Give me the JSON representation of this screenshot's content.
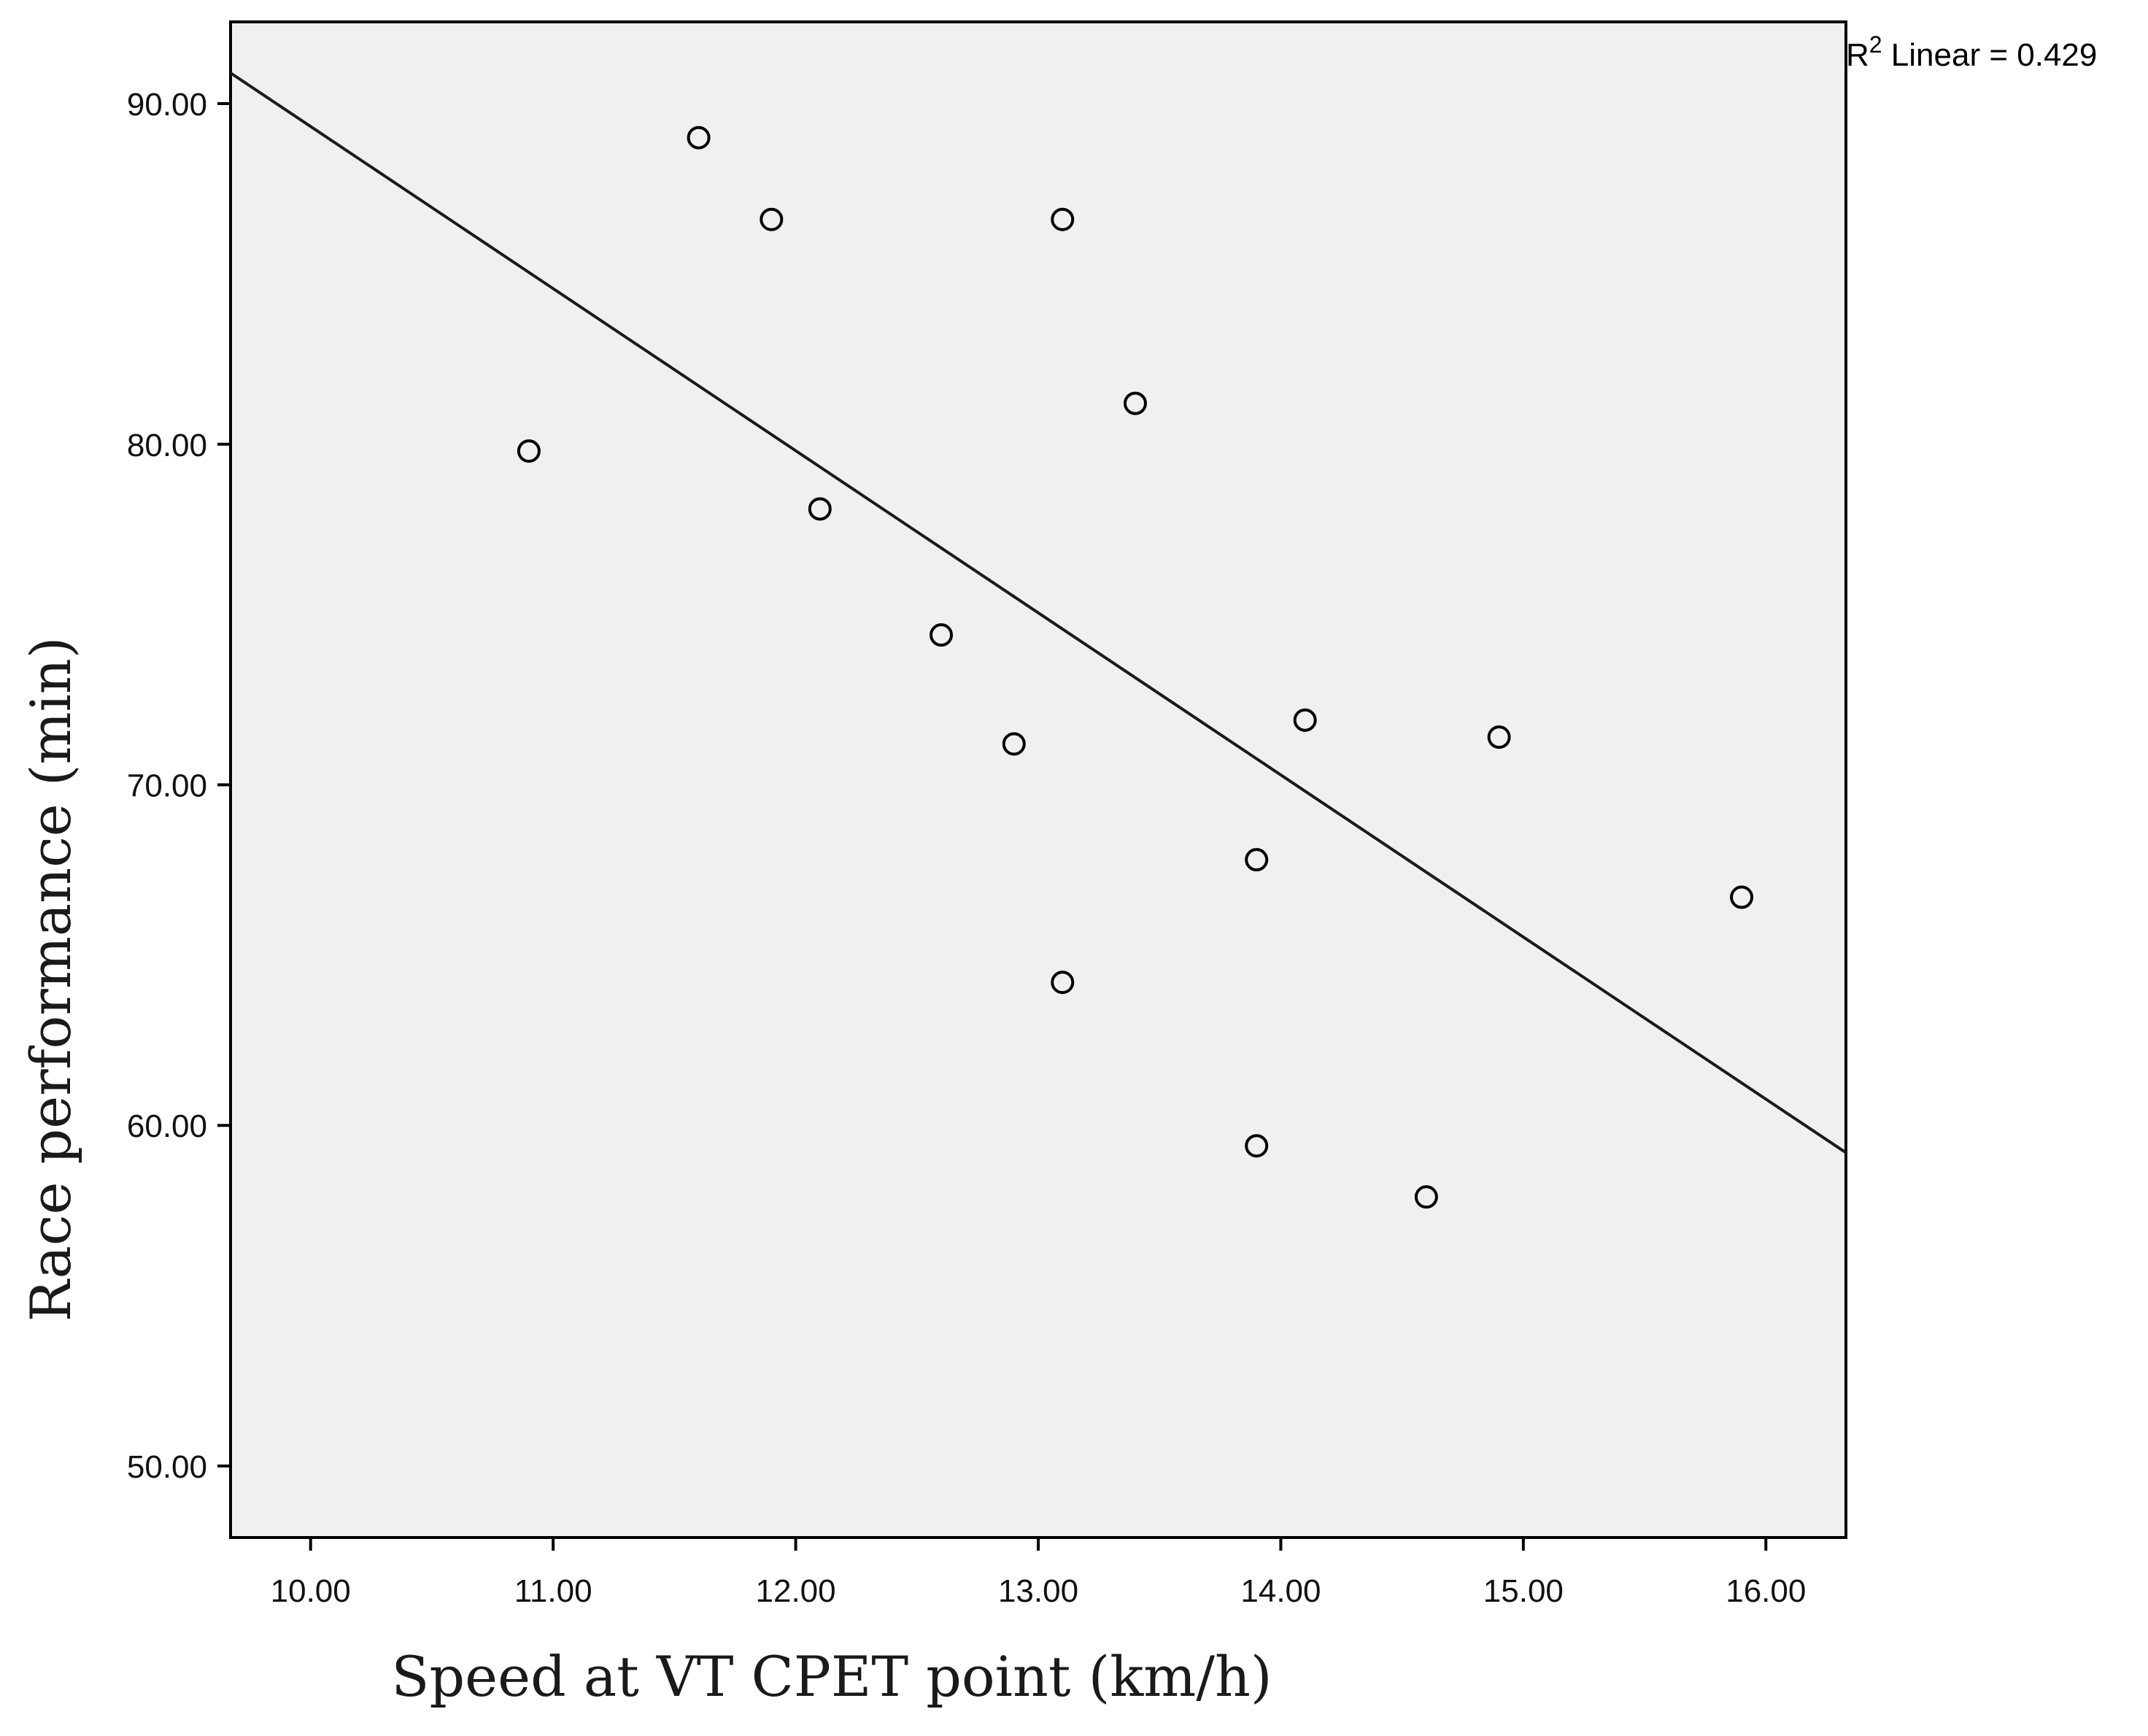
{
  "chart_data": {
    "type": "scatter",
    "title": "",
    "xlabel": "Speed at VT CPET point (km/h)",
    "ylabel": "Race performance (min)",
    "xlim": [
      9.67,
      16.33
    ],
    "ylim": [
      47.9,
      92.4
    ],
    "x_ticks": [
      10,
      11,
      12,
      13,
      14,
      15,
      16
    ],
    "x_tick_labels": [
      "10.00",
      "11.00",
      "12.00",
      "13.00",
      "14.00",
      "15.00",
      "16.00"
    ],
    "y_ticks": [
      50,
      60,
      70,
      80,
      90
    ],
    "y_tick_labels": [
      "50.00",
      "60.00",
      "70.00",
      "80.00",
      "90.00"
    ],
    "grid": false,
    "legend": "none",
    "points": [
      {
        "x": 10.9,
        "y": 79.8
      },
      {
        "x": 11.6,
        "y": 89.0
      },
      {
        "x": 11.9,
        "y": 86.6
      },
      {
        "x": 12.1,
        "y": 78.1
      },
      {
        "x": 12.6,
        "y": 74.4
      },
      {
        "x": 12.9,
        "y": 71.2
      },
      {
        "x": 13.1,
        "y": 86.6
      },
      {
        "x": 13.1,
        "y": 64.2
      },
      {
        "x": 13.4,
        "y": 81.2
      },
      {
        "x": 13.9,
        "y": 67.8
      },
      {
        "x": 13.9,
        "y": 59.4
      },
      {
        "x": 14.1,
        "y": 71.9
      },
      {
        "x": 14.6,
        "y": 57.9
      },
      {
        "x": 14.9,
        "y": 71.4
      },
      {
        "x": 15.9,
        "y": 66.7
      }
    ],
    "fit_line": {
      "type": "linear",
      "points": [
        {
          "x": 9.67,
          "y": 90.9
        },
        {
          "x": 16.33,
          "y": 59.2
        }
      ],
      "annotation_prefix": "R",
      "annotation_sup": "2",
      "annotation_suffix": " Linear = 0.429"
    },
    "colors": {
      "plot_background": "#f0f0f0",
      "axis": "#000000",
      "marker_stroke": "#000000",
      "fit_line": "#1a1a1a",
      "axis_title": "#1a1a1a"
    }
  }
}
